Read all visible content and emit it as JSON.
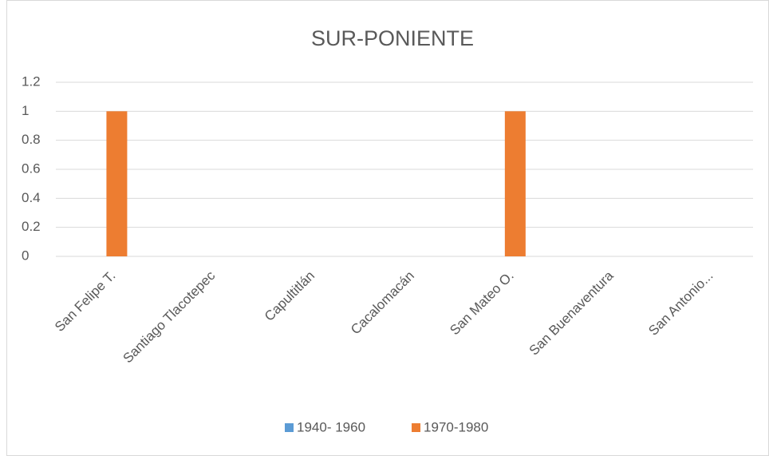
{
  "chart_data": {
    "type": "bar",
    "title": "SUR-PONIENTE",
    "categories": [
      "San Felipe T.",
      "Santiago Tlacotepec",
      "Capultitlán",
      "Cacalomacán",
      "San Mateo O.",
      "San Buenaventura",
      "San Antonio..."
    ],
    "series": [
      {
        "name": "1940- 1960",
        "color": "#5b9bd5",
        "values": [
          0,
          0,
          0,
          0,
          0,
          0,
          0
        ]
      },
      {
        "name": "1970-1980",
        "color": "#ed7d31",
        "values": [
          1,
          0,
          0,
          0,
          1,
          0,
          0
        ]
      }
    ],
    "ylim": [
      0,
      1.2
    ],
    "yticks": [
      0,
      0.2,
      0.4,
      0.6,
      0.8,
      1,
      1.2
    ],
    "grid": true,
    "legend": "bottom"
  }
}
